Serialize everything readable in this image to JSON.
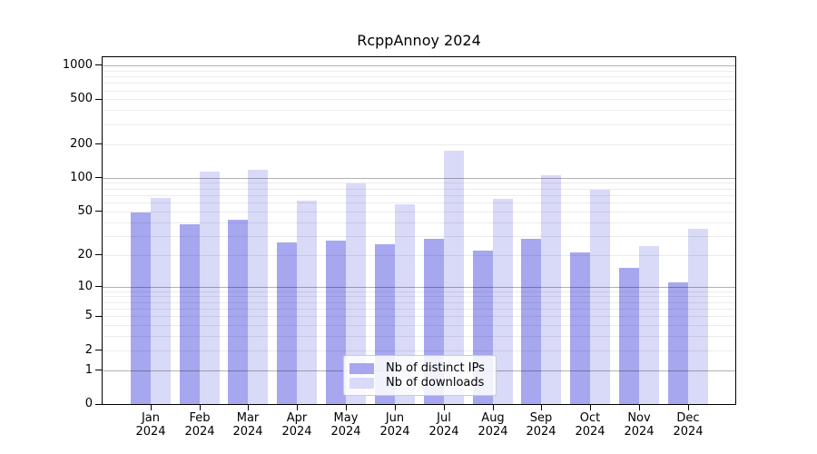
{
  "title": "RcppAnnoy 2024",
  "chart_data": {
    "type": "bar",
    "title": "RcppAnnoy 2024",
    "categories": [
      "Jan 2024",
      "Feb 2024",
      "Mar 2024",
      "Apr 2024",
      "May 2024",
      "Jun 2024",
      "Jul 2024",
      "Aug 2024",
      "Sep 2024",
      "Oct 2024",
      "Nov 2024",
      "Dec 2024"
    ],
    "series": [
      {
        "name": "Nb of distinct IPs",
        "color": "#a7a7ef",
        "values": [
          49,
          38,
          42,
          26,
          27,
          25,
          28,
          22,
          28,
          21,
          15,
          11
        ]
      },
      {
        "name": "Nb of downloads",
        "color": "#d9d9f8",
        "values": [
          66,
          114,
          118,
          62,
          89,
          58,
          176,
          65,
          105,
          78,
          24,
          35
        ]
      }
    ],
    "xlabel": "",
    "ylabel": "",
    "y_scale": "log1p",
    "ylim": [
      0,
      1300
    ],
    "y_ticks": [
      0,
      1,
      2,
      5,
      10,
      20,
      50,
      100,
      200,
      500,
      1000
    ],
    "y_major_gridlines": [
      1,
      10,
      100,
      1000
    ],
    "y_minor_gridlines": [
      2,
      3,
      4,
      5,
      6,
      7,
      8,
      9,
      20,
      30,
      40,
      50,
      60,
      70,
      80,
      90,
      200,
      300,
      400,
      500,
      600,
      700,
      800,
      900
    ],
    "grid": true,
    "legend_position": "lower-center-inside",
    "colors": {
      "axis": "#000000",
      "background": "#ffffff",
      "major_grid": "#b3b3b3",
      "minor_grid": "#ececec"
    }
  }
}
